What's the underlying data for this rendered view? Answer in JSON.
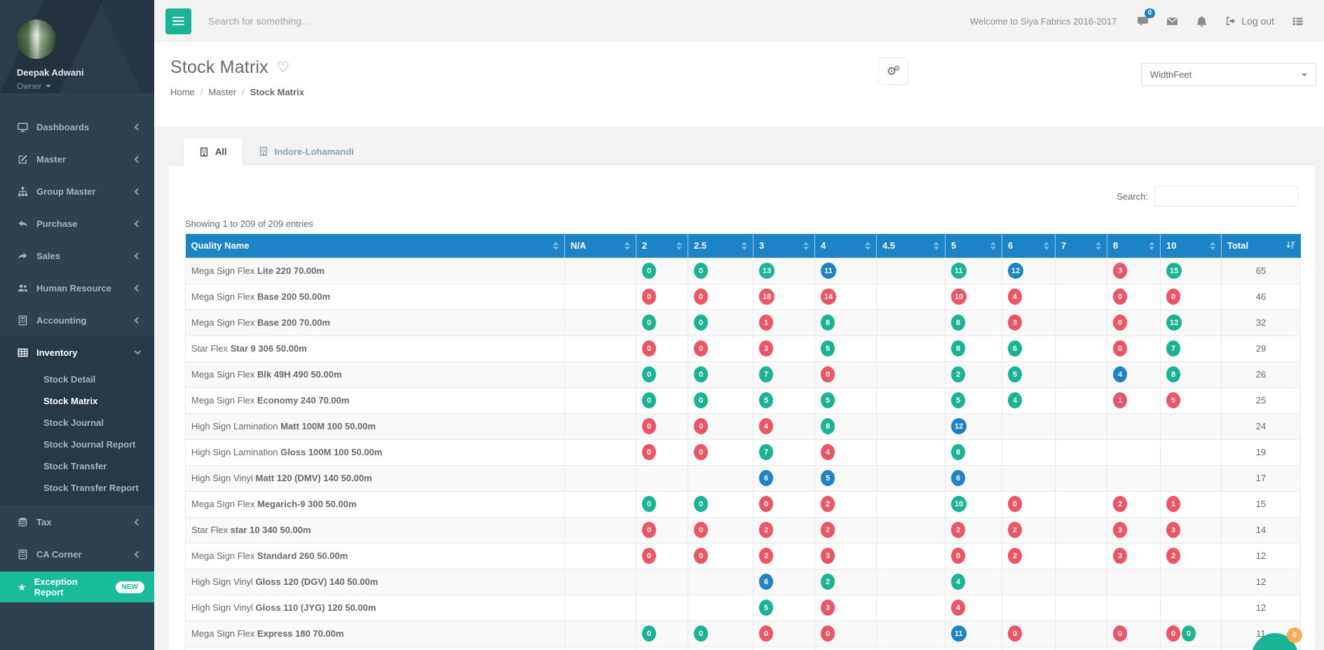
{
  "sidebar": {
    "user": {
      "name": "Deepak Adwani",
      "role": "Owner"
    },
    "items": [
      {
        "label": "Dashboards",
        "icon": "monitor"
      },
      {
        "label": "Master",
        "icon": "edit"
      },
      {
        "label": "Group Master",
        "icon": "sitemap"
      },
      {
        "label": "Purchase",
        "icon": "reply"
      },
      {
        "label": "Sales",
        "icon": "share"
      },
      {
        "label": "Human Resource",
        "icon": "users"
      },
      {
        "label": "Accounting",
        "icon": "calculator"
      },
      {
        "label": "Inventory",
        "icon": "grid",
        "active": true,
        "expanded": true,
        "children": [
          "Stock Detail",
          "Stock Matrix",
          "Stock Journal",
          "Stock Journal Report",
          "Stock Transfer",
          "Stock Transfer Report"
        ],
        "active_child": "Stock Matrix"
      },
      {
        "label": "Tax",
        "icon": "database"
      },
      {
        "label": "CA Corner",
        "icon": "calculator"
      }
    ],
    "exception": {
      "label": "Exception Report",
      "badge": "NEW"
    }
  },
  "header": {
    "search_placeholder": "Search for something...",
    "welcome": "Welcome to Siya Fabrics 2016-2017",
    "chat_badge": "0",
    "logout_label": "Log out"
  },
  "page": {
    "title": "Stock Matrix",
    "breadcrumb": [
      "Home",
      "Master",
      "Stock Matrix"
    ],
    "width_select": "WidthFeet"
  },
  "tabs": [
    {
      "label": "All",
      "active": true
    },
    {
      "label": "Indore-Lohamandi",
      "active": false
    }
  ],
  "table": {
    "search_label": "Search:",
    "search_value": "",
    "showing": "Showing 1 to 209 of 209 entries",
    "columns": [
      "Quality Name",
      "N/A",
      "2",
      "2.5",
      "3",
      "4",
      "4.5",
      "5",
      "6",
      "7",
      "8",
      "10",
      "Total"
    ],
    "rows": [
      {
        "prefix": "Mega Sign Flex",
        "name": "Lite 220 70.00m",
        "total": "65",
        "cells": [
          [],
          [
            {
              "v": "0",
              "c": "green"
            }
          ],
          [
            {
              "v": "0",
              "c": "green"
            }
          ],
          [
            {
              "v": "13",
              "c": "green"
            }
          ],
          [
            {
              "v": "11",
              "c": "blue"
            }
          ],
          [],
          [
            {
              "v": "11",
              "c": "green"
            }
          ],
          [
            {
              "v": "12",
              "c": "blue"
            }
          ],
          [],
          [
            {
              "v": "3",
              "c": "red"
            }
          ],
          [
            {
              "v": "15",
              "c": "green"
            }
          ]
        ]
      },
      {
        "prefix": "Mega Sign Flex",
        "name": "Base 200 50.00m",
        "total": "46",
        "cells": [
          [],
          [
            {
              "v": "0",
              "c": "red"
            }
          ],
          [
            {
              "v": "0",
              "c": "red"
            }
          ],
          [
            {
              "v": "18",
              "c": "red"
            }
          ],
          [
            {
              "v": "14",
              "c": "red"
            }
          ],
          [],
          [
            {
              "v": "10",
              "c": "red"
            }
          ],
          [
            {
              "v": "4",
              "c": "red"
            }
          ],
          [],
          [
            {
              "v": "0",
              "c": "red"
            }
          ],
          [
            {
              "v": "0",
              "c": "red"
            }
          ]
        ]
      },
      {
        "prefix": "Mega Sign Flex",
        "name": "Base 200 70.00m",
        "total": "32",
        "cells": [
          [],
          [
            {
              "v": "0",
              "c": "green"
            }
          ],
          [
            {
              "v": "0",
              "c": "green"
            }
          ],
          [
            {
              "v": "1",
              "c": "red"
            }
          ],
          [
            {
              "v": "8",
              "c": "green"
            }
          ],
          [],
          [
            {
              "v": "8",
              "c": "green"
            }
          ],
          [
            {
              "v": "3",
              "c": "red"
            }
          ],
          [],
          [
            {
              "v": "0",
              "c": "red"
            }
          ],
          [
            {
              "v": "12",
              "c": "green"
            }
          ]
        ]
      },
      {
        "prefix": "Star Flex",
        "name": "Star 9 306 50.00m",
        "total": "29",
        "cells": [
          [],
          [
            {
              "v": "0",
              "c": "red"
            }
          ],
          [
            {
              "v": "0",
              "c": "red"
            }
          ],
          [
            {
              "v": "3",
              "c": "red"
            }
          ],
          [
            {
              "v": "5",
              "c": "green"
            }
          ],
          [],
          [
            {
              "v": "8",
              "c": "green"
            }
          ],
          [
            {
              "v": "6",
              "c": "green"
            }
          ],
          [],
          [
            {
              "v": "0",
              "c": "red"
            }
          ],
          [
            {
              "v": "7",
              "c": "green"
            }
          ]
        ]
      },
      {
        "prefix": "Mega Sign Flex",
        "name": "Blk 49H 490 50.00m",
        "total": "26",
        "cells": [
          [],
          [
            {
              "v": "0",
              "c": "green"
            }
          ],
          [
            {
              "v": "0",
              "c": "green"
            }
          ],
          [
            {
              "v": "7",
              "c": "green"
            }
          ],
          [
            {
              "v": "0",
              "c": "red"
            }
          ],
          [],
          [
            {
              "v": "2",
              "c": "green"
            }
          ],
          [
            {
              "v": "5",
              "c": "green"
            }
          ],
          [],
          [
            {
              "v": "4",
              "c": "blue"
            }
          ],
          [
            {
              "v": "8",
              "c": "green"
            }
          ]
        ]
      },
      {
        "prefix": "Mega Sign Flex",
        "name": "Economy 240 70.00m",
        "total": "25",
        "cells": [
          [],
          [
            {
              "v": "0",
              "c": "green"
            }
          ],
          [
            {
              "v": "0",
              "c": "green"
            }
          ],
          [
            {
              "v": "5",
              "c": "green"
            }
          ],
          [
            {
              "v": "5",
              "c": "green"
            }
          ],
          [],
          [
            {
              "v": "5",
              "c": "green"
            }
          ],
          [
            {
              "v": "4",
              "c": "green"
            }
          ],
          [],
          [
            {
              "v": "1",
              "c": "red"
            }
          ],
          [
            {
              "v": "5",
              "c": "red"
            }
          ]
        ]
      },
      {
        "prefix": "High Sign Lamination",
        "name": "Matt 100M 100 50.00m",
        "total": "24",
        "cells": [
          [],
          [
            {
              "v": "0",
              "c": "red"
            }
          ],
          [
            {
              "v": "0",
              "c": "red"
            }
          ],
          [
            {
              "v": "4",
              "c": "red"
            }
          ],
          [
            {
              "v": "8",
              "c": "green"
            }
          ],
          [],
          [
            {
              "v": "12",
              "c": "blue"
            }
          ],
          [],
          [],
          [],
          []
        ]
      },
      {
        "prefix": "High Sign Lamination",
        "name": "Gloss 100M 100 50.00m",
        "total": "19",
        "cells": [
          [],
          [
            {
              "v": "0",
              "c": "red"
            }
          ],
          [
            {
              "v": "0",
              "c": "red"
            }
          ],
          [
            {
              "v": "7",
              "c": "green"
            }
          ],
          [
            {
              "v": "4",
              "c": "red"
            }
          ],
          [],
          [
            {
              "v": "8",
              "c": "green"
            }
          ],
          [],
          [],
          [],
          []
        ]
      },
      {
        "prefix": "High Sign Vinyl",
        "name": "Matt 120 (DMV) 140 50.00m",
        "total": "17",
        "cells": [
          [],
          [],
          [],
          [
            {
              "v": "6",
              "c": "blue"
            }
          ],
          [
            {
              "v": "5",
              "c": "blue"
            }
          ],
          [],
          [
            {
              "v": "6",
              "c": "blue"
            }
          ],
          [],
          [],
          [],
          []
        ]
      },
      {
        "prefix": "Mega Sign Flex",
        "name": "Megarich-9 300 50.00m",
        "total": "15",
        "cells": [
          [],
          [
            {
              "v": "0",
              "c": "green"
            }
          ],
          [
            {
              "v": "0",
              "c": "green"
            }
          ],
          [
            {
              "v": "0",
              "c": "red"
            }
          ],
          [
            {
              "v": "2",
              "c": "red"
            }
          ],
          [],
          [
            {
              "v": "10",
              "c": "green"
            }
          ],
          [
            {
              "v": "0",
              "c": "red"
            }
          ],
          [],
          [
            {
              "v": "2",
              "c": "red"
            }
          ],
          [
            {
              "v": "1",
              "c": "red"
            }
          ]
        ]
      },
      {
        "prefix": "Star Flex",
        "name": "star 10 340 50.00m",
        "total": "14",
        "cells": [
          [],
          [
            {
              "v": "0",
              "c": "red"
            }
          ],
          [
            {
              "v": "0",
              "c": "red"
            }
          ],
          [
            {
              "v": "2",
              "c": "red"
            }
          ],
          [
            {
              "v": "2",
              "c": "red"
            }
          ],
          [],
          [
            {
              "v": "2",
              "c": "red"
            }
          ],
          [
            {
              "v": "2",
              "c": "red"
            }
          ],
          [],
          [
            {
              "v": "3",
              "c": "red"
            }
          ],
          [
            {
              "v": "3",
              "c": "red"
            }
          ]
        ]
      },
      {
        "prefix": "Mega Sign Flex",
        "name": "Standard 260 50.00m",
        "total": "12",
        "cells": [
          [],
          [
            {
              "v": "0",
              "c": "red"
            }
          ],
          [
            {
              "v": "0",
              "c": "red"
            }
          ],
          [
            {
              "v": "2",
              "c": "red"
            }
          ],
          [
            {
              "v": "3",
              "c": "red"
            }
          ],
          [],
          [
            {
              "v": "0",
              "c": "red"
            }
          ],
          [
            {
              "v": "2",
              "c": "red"
            }
          ],
          [],
          [
            {
              "v": "3",
              "c": "red"
            }
          ],
          [
            {
              "v": "2",
              "c": "red"
            }
          ]
        ]
      },
      {
        "prefix": "High Sign Vinyl",
        "name": "Gloss 120 (DGV) 140 50.00m",
        "total": "12",
        "cells": [
          [],
          [],
          [],
          [
            {
              "v": "6",
              "c": "blue"
            }
          ],
          [
            {
              "v": "2",
              "c": "green"
            }
          ],
          [],
          [
            {
              "v": "4",
              "c": "green"
            }
          ],
          [],
          [],
          [],
          []
        ]
      },
      {
        "prefix": "High Sign Vinyl",
        "name": "Gloss 110 (JYG) 120 50.00m",
        "total": "12",
        "cells": [
          [],
          [],
          [],
          [
            {
              "v": "5",
              "c": "green"
            }
          ],
          [
            {
              "v": "3",
              "c": "red"
            }
          ],
          [],
          [
            {
              "v": "4",
              "c": "red"
            }
          ],
          [],
          [],
          [],
          []
        ]
      },
      {
        "prefix": "Mega Sign Flex",
        "name": "Express 180 70.00m",
        "total": "11",
        "cells": [
          [],
          [
            {
              "v": "0",
              "c": "green"
            }
          ],
          [
            {
              "v": "0",
              "c": "green"
            }
          ],
          [
            {
              "v": "0",
              "c": "red"
            }
          ],
          [
            {
              "v": "0",
              "c": "red"
            }
          ],
          [],
          [
            {
              "v": "11",
              "c": "blue"
            }
          ],
          [
            {
              "v": "0",
              "c": "red"
            }
          ],
          [],
          [
            {
              "v": "0",
              "c": "red"
            }
          ],
          [
            {
              "v": "0",
              "c": "red"
            },
            {
              "v": "0",
              "c": "green"
            }
          ]
        ]
      }
    ]
  },
  "chat_widget": {
    "badge": "0"
  },
  "colors": {
    "green": "#1ab394",
    "red": "#ed5565",
    "blue": "#1c84c6",
    "header_blue": "#1c84c6",
    "teal_accent": "#18bc9c",
    "orange": "#f8ac59",
    "sidebar_bg": "#2f4050",
    "sidebar_active_bg": "#293846"
  }
}
